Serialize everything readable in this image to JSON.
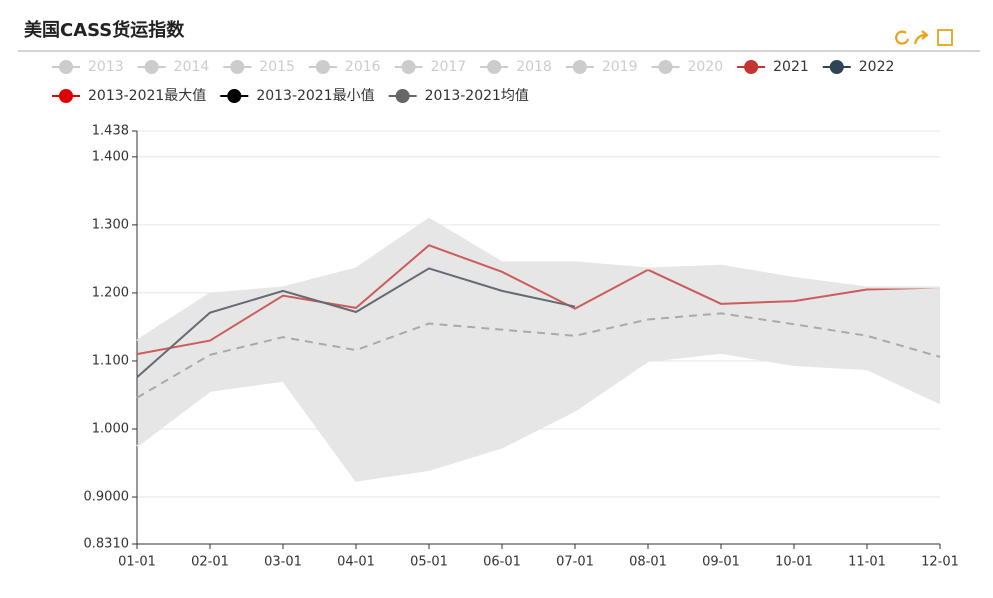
{
  "chart_data": {
    "type": "line",
    "title": "美国CASS货运指数",
    "categories": [
      "01-01",
      "02-01",
      "03-01",
      "04-01",
      "05-01",
      "06-01",
      "07-01",
      "08-01",
      "09-01",
      "10-01",
      "11-01",
      "12-01"
    ],
    "ylim": [
      0.831,
      1.438
    ],
    "yticks": [
      {
        "value": 0.831,
        "label": "0.8310"
      },
      {
        "value": 0.9,
        "label": "0.9000"
      },
      {
        "value": 1.0,
        "label": "1.000"
      },
      {
        "value": 1.1,
        "label": "1.100"
      },
      {
        "value": 1.2,
        "label": "1.200"
      },
      {
        "value": 1.3,
        "label": "1.300"
      },
      {
        "value": 1.4,
        "label": "1.400"
      },
      {
        "value": 1.438,
        "label": "1.438"
      }
    ],
    "grid": true,
    "disabled_color": "#cccccc",
    "band_color": "#e6e6e6",
    "series": [
      {
        "name": "2013",
        "color": "#cccccc",
        "disabled": true,
        "values": [
          null,
          null,
          null,
          null,
          null,
          null,
          null,
          null,
          null,
          null,
          null,
          null
        ]
      },
      {
        "name": "2014",
        "color": "#cccccc",
        "disabled": true,
        "values": [
          null,
          null,
          null,
          null,
          null,
          null,
          null,
          null,
          null,
          null,
          null,
          null
        ]
      },
      {
        "name": "2015",
        "color": "#cccccc",
        "disabled": true,
        "values": [
          null,
          null,
          null,
          null,
          null,
          null,
          null,
          null,
          null,
          null,
          null,
          null
        ]
      },
      {
        "name": "2016",
        "color": "#cccccc",
        "disabled": true,
        "values": [
          null,
          null,
          null,
          null,
          null,
          null,
          null,
          null,
          null,
          null,
          null,
          null
        ]
      },
      {
        "name": "2017",
        "color": "#cccccc",
        "disabled": true,
        "values": [
          null,
          null,
          null,
          null,
          null,
          null,
          null,
          null,
          null,
          null,
          null,
          null
        ]
      },
      {
        "name": "2018",
        "color": "#cccccc",
        "disabled": true,
        "values": [
          null,
          null,
          null,
          null,
          null,
          null,
          null,
          null,
          null,
          null,
          null,
          null
        ]
      },
      {
        "name": "2019",
        "color": "#cccccc",
        "disabled": true,
        "values": [
          null,
          null,
          null,
          null,
          null,
          null,
          null,
          null,
          null,
          null,
          null,
          null
        ]
      },
      {
        "name": "2020",
        "color": "#cccccc",
        "disabled": true,
        "values": [
          null,
          null,
          null,
          null,
          null,
          null,
          null,
          null,
          null,
          null,
          null,
          null
        ]
      },
      {
        "name": "2021",
        "color": "#c23531",
        "line_color": "#cd5c5c",
        "values": [
          1.11,
          1.13,
          1.196,
          1.178,
          1.27,
          1.231,
          1.177,
          1.234,
          1.184,
          1.188,
          1.205,
          1.208
        ]
      },
      {
        "name": "2022",
        "color": "#2f4554",
        "line_color": "#666a73",
        "values": [
          1.076,
          1.171,
          1.203,
          1.172,
          1.236,
          1.203,
          1.18,
          null,
          null,
          null,
          null,
          null
        ]
      },
      {
        "name": "2013-2021最大值",
        "color": "#e00000",
        "role": "band_top",
        "values": [
          1.13,
          1.199,
          1.208,
          1.236,
          1.309,
          1.245,
          1.245,
          1.236,
          1.24,
          1.222,
          1.208,
          1.208
        ]
      },
      {
        "name": "2013-2021最小值",
        "color": "#000000",
        "role": "band_bottom",
        "values": [
          0.975,
          1.056,
          1.071,
          0.924,
          0.94,
          0.973,
          1.027,
          1.1,
          1.112,
          1.094,
          1.088,
          1.038
        ]
      },
      {
        "name": "2013-2021均值",
        "color": "#666666",
        "line_color": "#aaaaaa",
        "dash": true,
        "values": [
          1.046,
          1.109,
          1.135,
          1.116,
          1.155,
          1.146,
          1.137,
          1.161,
          1.17,
          1.154,
          1.137,
          1.106
        ]
      }
    ]
  }
}
